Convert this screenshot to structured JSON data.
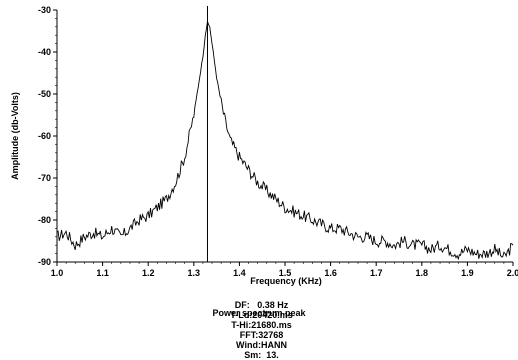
{
  "chart_data": {
    "type": "line",
    "xlabel": "Frequency (KHz)",
    "ylabel": "Amplitude (db-Volts)",
    "xlim": [
      1.0,
      2.0
    ],
    "ylim": [
      -90,
      -30
    ],
    "x_ticks": [
      "1.0",
      "1.1",
      "1.2",
      "1.3",
      "1.4",
      "1.5",
      "1.6",
      "1.7",
      "1.8",
      "1.9",
      "2.0"
    ],
    "y_ticks": [
      "-30",
      "-40",
      "-50",
      "-60",
      "-70",
      "-80",
      "-90"
    ],
    "marker_x": 1.33,
    "grid": false,
    "series": [
      {
        "x": [
          1.0,
          1.02,
          1.04,
          1.06,
          1.08,
          1.1,
          1.12,
          1.14,
          1.16,
          1.18,
          1.2,
          1.22,
          1.24,
          1.26,
          1.27,
          1.28,
          1.29,
          1.3,
          1.31,
          1.32,
          1.325,
          1.33,
          1.335,
          1.34,
          1.35,
          1.36,
          1.37,
          1.38,
          1.4,
          1.42,
          1.44,
          1.46,
          1.48,
          1.5,
          1.52,
          1.54,
          1.56,
          1.58,
          1.6,
          1.62,
          1.64,
          1.66,
          1.68,
          1.7,
          1.72,
          1.74,
          1.76,
          1.78,
          1.8,
          1.82,
          1.84,
          1.86,
          1.88,
          1.9,
          1.92,
          1.94,
          1.96,
          1.98,
          2.0
        ],
        "y": [
          -84,
          -83,
          -86,
          -84,
          -83,
          -84,
          -82,
          -84,
          -82,
          -80,
          -79,
          -77,
          -75,
          -71,
          -68,
          -65,
          -60,
          -55,
          -48,
          -41,
          -36,
          -33,
          -34,
          -38,
          -46,
          -52,
          -57,
          -61,
          -65,
          -68,
          -71,
          -73,
          -75,
          -77,
          -78,
          -79,
          -80,
          -81,
          -82,
          -82,
          -83,
          -84,
          -84,
          -85,
          -85,
          -86,
          -85,
          -86,
          -86,
          -87,
          -86,
          -87,
          -88,
          -87,
          -88,
          -88,
          -87,
          -89,
          -86
        ]
      }
    ]
  },
  "info": {
    "df": "DF:   0.38 Hz",
    "tlo": "T-Lo:20420.ms",
    "thi": "T-Hi:21680.ms",
    "fft": "FFT:32768",
    "wind": "Wind:HANN",
    "sm": "Sm:  13."
  },
  "caption": "Power spectrum peak"
}
